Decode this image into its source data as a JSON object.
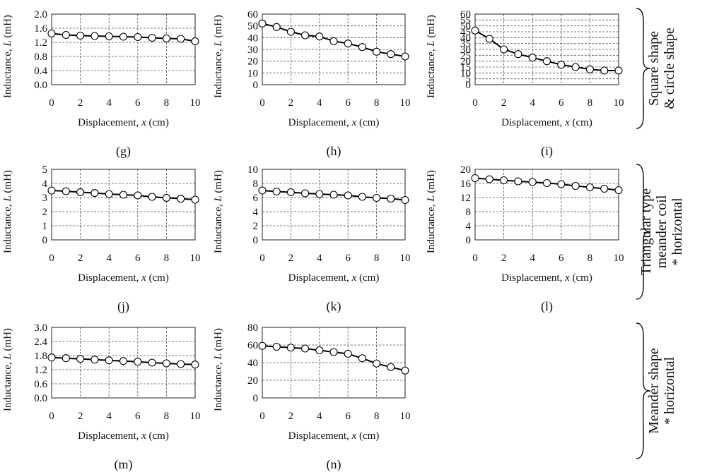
{
  "x_label": {
    "prefix": "Displacement, ",
    "var": "x",
    "suffix": " (cm)"
  },
  "y_label": {
    "prefix": "Inductance, ",
    "var": "L",
    "suffix": " (mH)"
  },
  "chart_data": [
    {
      "type": "line",
      "caption": "(g)",
      "xlim": [
        0,
        10
      ],
      "ylim": [
        0,
        2.0
      ],
      "yticks": [
        "0.0",
        "0.4",
        "0.8",
        "1.2",
        "1.6",
        "2.0"
      ],
      "xticks": [
        "0",
        "2",
        "4",
        "6",
        "8",
        "10"
      ],
      "x": [
        0,
        1,
        2,
        3,
        4,
        5,
        6,
        7,
        8,
        9,
        10
      ],
      "values": [
        1.45,
        1.41,
        1.39,
        1.38,
        1.37,
        1.36,
        1.35,
        1.33,
        1.31,
        1.3,
        1.23
      ]
    },
    {
      "type": "line",
      "caption": "(h)",
      "xlim": [
        0,
        10
      ],
      "ylim": [
        0,
        60
      ],
      "yticks": [
        "0",
        "10",
        "20",
        "30",
        "40",
        "50",
        "60"
      ],
      "xticks": [
        "0",
        "2",
        "4",
        "6",
        "8",
        "10"
      ],
      "x": [
        0,
        1,
        2,
        3,
        4,
        5,
        6,
        7,
        8,
        9,
        10
      ],
      "values": [
        52,
        49,
        45,
        42,
        41,
        37,
        35,
        32,
        28,
        26,
        24
      ]
    },
    {
      "type": "line",
      "caption": "(i)",
      "xlim": [
        0,
        10
      ],
      "ylim": [
        0,
        60
      ],
      "yticks": [
        "0",
        "5",
        "10",
        "15",
        "20",
        "25",
        "30",
        "35",
        "40",
        "45",
        "50",
        "55",
        "60"
      ],
      "xticks": [
        "0",
        "2",
        "4",
        "6",
        "8",
        "10"
      ],
      "x": [
        0,
        1,
        2,
        3,
        4,
        5,
        6,
        7,
        8,
        9,
        10
      ],
      "values": [
        46,
        39,
        30,
        26,
        23,
        20,
        17,
        15,
        13,
        12,
        12
      ]
    },
    {
      "type": "line",
      "caption": "(j)",
      "xlim": [
        0,
        10
      ],
      "ylim": [
        0,
        5
      ],
      "yticks": [
        "0",
        "1",
        "2",
        "3",
        "4",
        "5"
      ],
      "xticks": [
        "0",
        "2",
        "4",
        "6",
        "8",
        "10"
      ],
      "x": [
        0,
        1,
        2,
        3,
        4,
        5,
        6,
        7,
        8,
        9,
        10
      ],
      "values": [
        3.5,
        3.45,
        3.38,
        3.32,
        3.25,
        3.2,
        3.15,
        3.05,
        2.98,
        2.92,
        2.85
      ]
    },
    {
      "type": "line",
      "caption": "(k)",
      "xlim": [
        0,
        10
      ],
      "ylim": [
        0,
        10
      ],
      "yticks": [
        "0",
        "2",
        "4",
        "6",
        "8",
        "10"
      ],
      "xticks": [
        "0",
        "2",
        "4",
        "6",
        "8",
        "10"
      ],
      "x": [
        0,
        1,
        2,
        3,
        4,
        5,
        6,
        7,
        8,
        9,
        10
      ],
      "values": [
        7.0,
        6.85,
        6.75,
        6.6,
        6.5,
        6.4,
        6.3,
        6.1,
        5.95,
        5.85,
        5.65
      ]
    },
    {
      "type": "line",
      "caption": "(l)",
      "xlim": [
        0,
        10
      ],
      "ylim": [
        0,
        20
      ],
      "yticks": [
        "0",
        "4",
        "8",
        "12",
        "16",
        "20"
      ],
      "xticks": [
        "0",
        "2",
        "4",
        "6",
        "8",
        "10"
      ],
      "x": [
        0,
        1,
        2,
        3,
        4,
        5,
        6,
        7,
        8,
        9,
        10
      ],
      "values": [
        17.5,
        17.2,
        16.9,
        16.6,
        16.4,
        16.1,
        15.8,
        15.3,
        14.9,
        14.5,
        14.1
      ]
    },
    {
      "type": "line",
      "caption": "(m)",
      "xlim": [
        0,
        10
      ],
      "ylim": [
        0,
        3.0
      ],
      "yticks": [
        "0.0",
        "0.6",
        "1.2",
        "1.8",
        "2.4",
        "3.0"
      ],
      "xticks": [
        "0",
        "2",
        "4",
        "6",
        "8",
        "10"
      ],
      "x": [
        0,
        1,
        2,
        3,
        4,
        5,
        6,
        7,
        8,
        9,
        10
      ],
      "values": [
        1.72,
        1.69,
        1.66,
        1.63,
        1.6,
        1.57,
        1.54,
        1.5,
        1.47,
        1.44,
        1.42
      ]
    },
    {
      "type": "line",
      "caption": "(n)",
      "xlim": [
        0,
        10
      ],
      "ylim": [
        0,
        80
      ],
      "yticks": [
        "0",
        "20",
        "40",
        "60",
        "80"
      ],
      "xticks": [
        "0",
        "2",
        "4",
        "6",
        "8",
        "10"
      ],
      "x": [
        0,
        1,
        2,
        3,
        4,
        5,
        6,
        7,
        8,
        9,
        10
      ],
      "values": [
        59,
        58,
        57,
        56,
        54,
        52,
        50,
        45,
        39,
        35,
        31
      ]
    }
  ],
  "groups": [
    {
      "lines": [
        "Square shape",
        "& circle shape"
      ]
    },
    {
      "lines": [
        "Triangular type",
        "meander coil",
        "* horizontal"
      ]
    },
    {
      "lines": [
        "Meander shape",
        "* horizontal"
      ]
    }
  ]
}
